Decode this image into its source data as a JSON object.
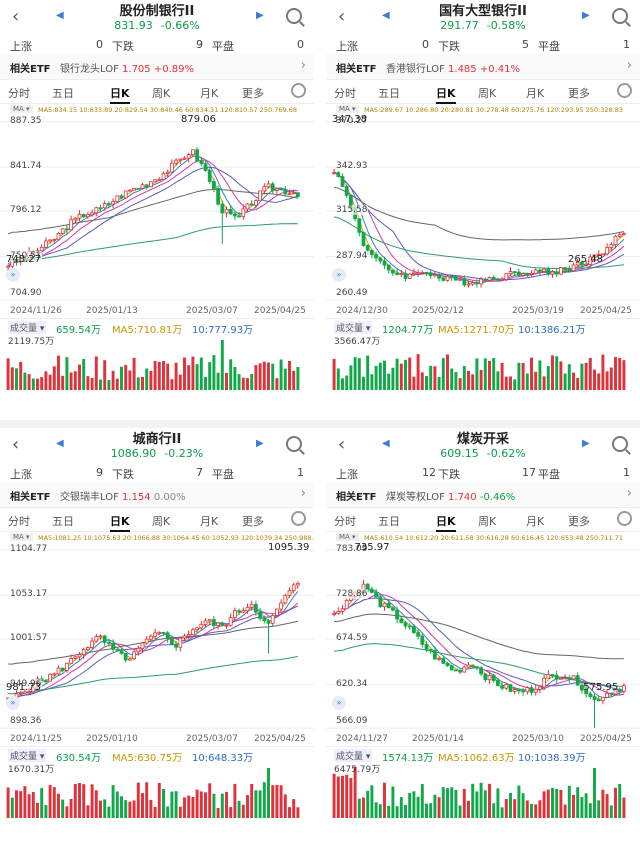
{
  "colors": {
    "up": "#e0323b",
    "down": "#11a84a",
    "ma5": "#e2a500",
    "ma10": "#3c7bd6",
    "ma20": "#d93a9c",
    "ma30": "#e05656",
    "ma60": "#5b5bc9",
    "ma120": "#666666",
    "ma250": "#2e9b6d"
  },
  "icons": {
    "back": "chevron-left-icon",
    "prev": "triangle-left-icon",
    "next": "triangle-right-icon",
    "search": "search-icon",
    "settings": "gear-icon"
  },
  "labels": {
    "up_count": "上涨",
    "down_count": "下跌",
    "flat_count": "平盘",
    "related_etf": "相关ETF",
    "ma_button": "MA ▾",
    "volume_button": "成交量 ▾",
    "more_arrow": "›"
  },
  "tabs": [
    "分时",
    "五日",
    "日K",
    "周K",
    "月K",
    "更多"
  ],
  "panels": [
    {
      "title": "股份制银行II",
      "price": "831.93",
      "change": "-0.66%",
      "up": "0",
      "down": "9",
      "flat": "0",
      "etf_name": "银行龙头LOF",
      "etf_price": "1.705",
      "etf_change": "+0.89%",
      "ma_line": "MA5:834.15  10:833.89  20:829.54  30:840.46  60:834.31  120:810.57  250:769.68",
      "price_labels": [
        "887.35",
        "841.74",
        "796.12",
        "750.51",
        "704.90"
      ],
      "high_label": "879.06",
      "low_label": "748.27",
      "dates": [
        "2024/11/26",
        "2025/01/13",
        "2025/03/07",
        "2025/04/25"
      ],
      "vol": "659.54万",
      "vol_ma5": "MA5:710.81万",
      "vol_ma10": "10:777.93万",
      "vol_max": "2119.75万"
    },
    {
      "title": "国有大型银行II",
      "price": "291.77",
      "change": "-0.58%",
      "up": "0",
      "down": "5",
      "flat": "1",
      "etf_name": "香港银行LOF",
      "etf_price": "1.485",
      "etf_change": "+0.41%",
      "ma_line": "MA5:289.67  10:286.80  20:280.81  30:278.48  60:275.76  120:293.95  250:328.83",
      "price_labels": [
        "370.27",
        "342.93",
        "315.58",
        "287.94",
        "260.49"
      ],
      "high_label": "347.38",
      "low_label": "265.48",
      "dates": [
        "2024/12/30",
        "2025/02/12",
        "2025/03/19",
        "2025/04/25"
      ],
      "vol": "1204.77万",
      "vol_ma5": "MA5:1271.70万",
      "vol_ma10": "10:1386.21万",
      "vol_max": "3566.47万"
    },
    {
      "title": "城商行II",
      "price": "1086.90",
      "change": "-0.23%",
      "up": "9",
      "down": "7",
      "flat": "1",
      "etf_name": "交银瑞丰LOF",
      "etf_price": "1.154",
      "etf_change": "0.00%",
      "ma_line": "MA5:1081.25  10:1075.63  20:1066.88  30:1064.45  60:1052.93  120:1039.34  250:988.26",
      "price_labels": [
        "1104.77",
        "1053.17",
        "1001.57",
        "949.96",
        "898.36"
      ],
      "high_label": "1095.39",
      "low_label": "981.73",
      "dates": [
        "2024/11/25",
        "2025/01/10",
        "2025/03/07",
        "2025/04/25"
      ],
      "vol": "630.54万",
      "vol_ma5": "MA5:630.75万",
      "vol_ma10": "10:648.33万",
      "vol_max": "1670.31万"
    },
    {
      "title": "煤炭开采",
      "price": "609.15",
      "change": "-0.62%",
      "up": "12",
      "down": "17",
      "flat": "1",
      "etf_name": "煤炭等权LOF",
      "etf_price": "1.740",
      "etf_change": "-0.46%",
      "ma_line": "MA5:610.54  10:612.20  20:611.58  30:616.28  60:616.45  120:653.48  250:711.71",
      "price_labels": [
        "783.09",
        "728.86",
        "674.59",
        "620.34",
        "566.09"
      ],
      "high_label": "735.97",
      "low_label": "575.95",
      "dates": [
        "2024/11/27",
        "2025/01/14",
        "2025/03/10",
        "2025/04/25"
      ],
      "vol": "1574.13万",
      "vol_ma5": "MA5:1062.63万",
      "vol_ma10": "10:1038.39万",
      "vol_max": "6475.79万"
    }
  ]
}
